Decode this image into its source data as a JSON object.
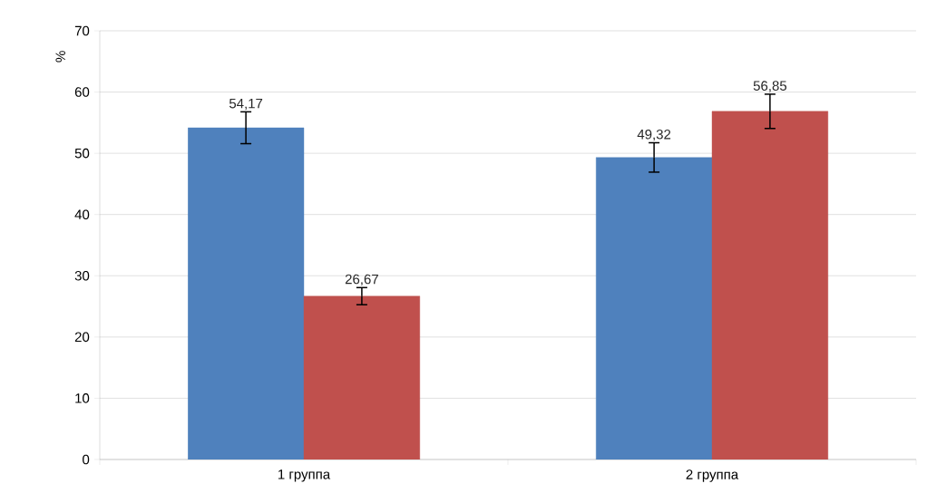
{
  "chart_data": {
    "type": "bar",
    "ylabel": "%",
    "categories": [
      "1 группа",
      "2 группа"
    ],
    "series": [
      {
        "color": "#4f81bd",
        "values": [
          54.17,
          49.32
        ],
        "errors": [
          2.6,
          2.4
        ],
        "value_labels": [
          "54,17",
          "49,32"
        ]
      },
      {
        "color": "#c0504d",
        "values": [
          26.67,
          56.85
        ],
        "errors": [
          1.4,
          2.8
        ],
        "value_labels": [
          "26,67",
          "56,85"
        ]
      }
    ],
    "ylim": [
      0,
      70
    ],
    "yticks": [
      0,
      10,
      20,
      30,
      40,
      50,
      60,
      70
    ],
    "grid": "y"
  }
}
